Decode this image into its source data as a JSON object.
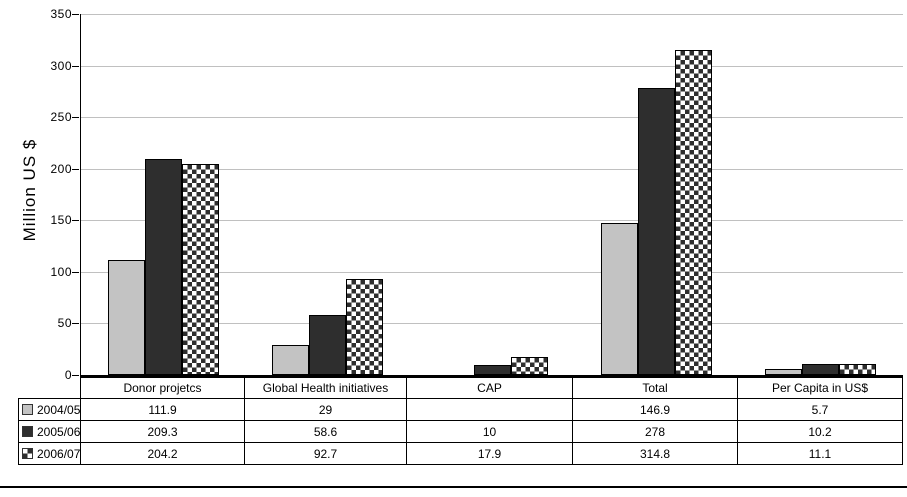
{
  "chart_data": {
    "type": "bar",
    "title": "",
    "ylabel": "Million US $",
    "xlabel": "",
    "ylim": [
      0,
      350
    ],
    "ytick_step": 50,
    "ytick_labels": [
      "0",
      "50",
      "100",
      "150",
      "200",
      "250",
      "300",
      "350"
    ],
    "grid": true,
    "legend_position": "data-table-left",
    "categories": [
      "Donor projetcs",
      "Global Health initiatives",
      "CAP",
      "Total",
      "Per Capita in US$"
    ],
    "series": [
      {
        "name": "2004/05",
        "values": [
          111.9,
          29,
          null,
          146.9,
          5.7
        ]
      },
      {
        "name": "2005/06",
        "values": [
          209.3,
          58.6,
          10,
          278,
          10.2
        ]
      },
      {
        "name": "2006/07",
        "values": [
          204.2,
          92.7,
          17.9,
          314.8,
          11.1
        ]
      }
    ]
  },
  "styles": {
    "series_fills": [
      {
        "kind": "solid",
        "color": "#c3c3c3"
      },
      {
        "kind": "solid",
        "color": "#2e2e2e"
      },
      {
        "kind": "checker",
        "fg": "#2e2e2e",
        "bg": "#ffffff"
      }
    ],
    "gridline_color": "#c0c0c0",
    "axis_color": "#000000",
    "table_border_color": "#000000"
  }
}
